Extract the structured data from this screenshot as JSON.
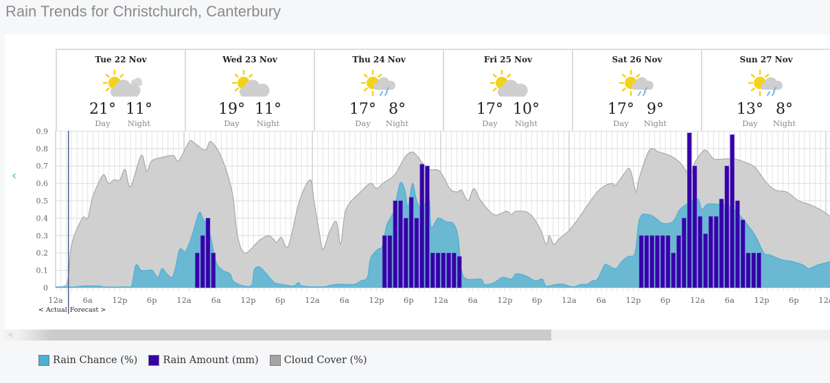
{
  "title": "Rain Trends for Christchurch, Canterbury",
  "days": [
    {
      "name": "Tue 22 Nov",
      "icon": "partly-cloudy-icon",
      "day": "21°",
      "night": "11°"
    },
    {
      "name": "Wed 23 Nov",
      "icon": "sun-cloud-icon",
      "day": "19°",
      "night": "11°"
    },
    {
      "name": "Thu 24 Nov",
      "icon": "sun-showers-icon",
      "day": "17°",
      "night": "8°"
    },
    {
      "name": "Fri 25 Nov",
      "icon": "sun-cloud-icon",
      "day": "17°",
      "night": "10°"
    },
    {
      "name": "Sat 26 Nov",
      "icon": "sun-showers-icon",
      "day": "17°",
      "night": "9°"
    },
    {
      "name": "Sun 27 Nov",
      "icon": "sun-showers-icon",
      "day": "13°",
      "night": "8°"
    }
  ],
  "labels": {
    "day": "Day",
    "night": "Night",
    "actual": "< Actual",
    "forecast": "Forecast >"
  },
  "nav": {
    "prev": "‹"
  },
  "legend": [
    {
      "label": "Rain Chance (%)",
      "color": "#4ab0d4"
    },
    {
      "label": "Rain Amount (mm)",
      "color": "#3700a8"
    },
    {
      "label": "Cloud Cover (%)",
      "color": "#a5a5a5"
    }
  ],
  "chart_data": {
    "type": "area+bar",
    "x_unit": "hours from 12a Tue 22 Nov",
    "xlim": [
      0,
      144.8
    ],
    "ylim": [
      0,
      0.9
    ],
    "y_ticks": [
      "0",
      "0.1",
      "0.2",
      "0.3",
      "0.4",
      "0.5",
      "0.6",
      "0.7",
      "0.8",
      "0.9"
    ],
    "x_ticks": [
      "12a",
      "6a",
      "12p",
      "6p",
      "12a",
      "6a",
      "12p",
      "6p",
      "12a",
      "6a",
      "12p",
      "6p",
      "12a",
      "6a",
      "12p",
      "6p",
      "12a",
      "6a",
      "12p",
      "6p",
      "12a",
      "6a",
      "12p",
      "6p",
      "12a"
    ],
    "grid": true,
    "actual_forecast_split_hour": 2.4,
    "series": [
      {
        "name": "Cloud Cover (%)",
        "color": "#d0d0d0",
        "points": [
          [
            0,
            0
          ],
          [
            2.1,
            0.02
          ],
          [
            3,
            0.25
          ],
          [
            5,
            0.4
          ],
          [
            6,
            0.4
          ],
          [
            6.9,
            0.52
          ],
          [
            8,
            0.6
          ],
          [
            9,
            0.65
          ],
          [
            9.9,
            0.6
          ],
          [
            10.9,
            0.62
          ],
          [
            12,
            0.62
          ],
          [
            13,
            0.68
          ],
          [
            14,
            0.58
          ],
          [
            16,
            0.76
          ],
          [
            17,
            0.67
          ],
          [
            18,
            0.73
          ],
          [
            20,
            0.75
          ],
          [
            22,
            0.76
          ],
          [
            23,
            0.73
          ],
          [
            25,
            0.84
          ],
          [
            26,
            0.83
          ],
          [
            28,
            0.79
          ],
          [
            29,
            0.84
          ],
          [
            31,
            0.75
          ],
          [
            33,
            0.55
          ],
          [
            34,
            0.3
          ],
          [
            35.4,
            0.2
          ],
          [
            38,
            0.27
          ],
          [
            39.7,
            0.3
          ],
          [
            40.7,
            0.28
          ],
          [
            41.3,
            0.26
          ],
          [
            42.2,
            0.29
          ],
          [
            43.5,
            0.24
          ],
          [
            45.6,
            0.5
          ],
          [
            47.6,
            0.62
          ],
          [
            48.3,
            0.5
          ],
          [
            49.4,
            0.3
          ],
          [
            50,
            0.22
          ],
          [
            51.2,
            0.32
          ],
          [
            52.5,
            0.38
          ],
          [
            53.3,
            0.25
          ],
          [
            54.3,
            0.45
          ],
          [
            57,
            0.55
          ],
          [
            58.9,
            0.6
          ],
          [
            60,
            0.57
          ],
          [
            61.2,
            0.6
          ],
          [
            63.4,
            0.65
          ],
          [
            65.3,
            0.75
          ],
          [
            66.6,
            0.78
          ],
          [
            67.5,
            0.76
          ],
          [
            68.5,
            0.72
          ],
          [
            69.8,
            0.68
          ],
          [
            71.8,
            0.67
          ],
          [
            73.7,
            0.57
          ],
          [
            75,
            0.55
          ],
          [
            75.9,
            0.56
          ],
          [
            77.1,
            0.5
          ],
          [
            78.2,
            0.57
          ],
          [
            79.5,
            0.5
          ],
          [
            82,
            0.42
          ],
          [
            84.3,
            0.44
          ],
          [
            85.2,
            0.42
          ],
          [
            86.1,
            0.44
          ],
          [
            88.4,
            0.43
          ],
          [
            90.4,
            0.35
          ],
          [
            91.7,
            0.25
          ],
          [
            92.3,
            0.3
          ],
          [
            93.1,
            0.25
          ],
          [
            94.1,
            0.28
          ],
          [
            94.9,
            0.3
          ],
          [
            96,
            0.33
          ],
          [
            97.8,
            0.4
          ],
          [
            100,
            0.5
          ],
          [
            101.9,
            0.57
          ],
          [
            103.9,
            0.6
          ],
          [
            104.7,
            0.59
          ],
          [
            106.4,
            0.66
          ],
          [
            107.4,
            0.68
          ],
          [
            108.5,
            0.55
          ],
          [
            109,
            0.62
          ],
          [
            111,
            0.79
          ],
          [
            112.8,
            0.78
          ],
          [
            114.8,
            0.76
          ],
          [
            116.7,
            0.72
          ],
          [
            118.6,
            0.65
          ],
          [
            119.5,
            0.72
          ],
          [
            121.2,
            0.79
          ],
          [
            122.2,
            0.77
          ],
          [
            123.1,
            0.74
          ],
          [
            125,
            0.74
          ],
          [
            127,
            0.74
          ],
          [
            129,
            0.72
          ],
          [
            130.8,
            0.69
          ],
          [
            133,
            0.6
          ],
          [
            134.7,
            0.56
          ],
          [
            136.7,
            0.55
          ],
          [
            138.9,
            0.5
          ],
          [
            140.8,
            0.48
          ],
          [
            142.9,
            0.45
          ],
          [
            144.8,
            0.41
          ]
        ]
      },
      {
        "name": "Rain Chance (%)",
        "color": "#4ab0d4",
        "points": [
          [
            0,
            0.005
          ],
          [
            3.7,
            0.005
          ],
          [
            5,
            0.01
          ],
          [
            8.2,
            0.01
          ],
          [
            8.9,
            0.005
          ],
          [
            13.3,
            0.005
          ],
          [
            14.2,
            0.01
          ],
          [
            15,
            0.13
          ],
          [
            16,
            0.1
          ],
          [
            17.2,
            0.1
          ],
          [
            18.1,
            0.1
          ],
          [
            19.1,
            0.06
          ],
          [
            19.9,
            0.11
          ],
          [
            20.8,
            0.08
          ],
          [
            21.7,
            0.06
          ],
          [
            22.3,
            0.1
          ],
          [
            23.2,
            0.22
          ],
          [
            24.3,
            0.21
          ],
          [
            25.5,
            0.3
          ],
          [
            26.8,
            0.43
          ],
          [
            27.5,
            0.4
          ],
          [
            28.7,
            0.33
          ],
          [
            30,
            0.15
          ],
          [
            31.3,
            0.1
          ],
          [
            32.6,
            0.08
          ],
          [
            33.5,
            0.03
          ],
          [
            36.5,
            0.01
          ],
          [
            37.1,
            0.1
          ],
          [
            38.1,
            0.12
          ],
          [
            39.7,
            0.07
          ],
          [
            40.9,
            0.03
          ],
          [
            42.2,
            0.02
          ],
          [
            44.5,
            0.01
          ],
          [
            45.4,
            0.03
          ],
          [
            46.2,
            0.01
          ],
          [
            49.9,
            0.005
          ],
          [
            50.9,
            0.01
          ],
          [
            52.5,
            0.02
          ],
          [
            55.8,
            0.02
          ],
          [
            57.1,
            0.04
          ],
          [
            58.3,
            0.06
          ],
          [
            58.9,
            0.17
          ],
          [
            60.2,
            0.22
          ],
          [
            61.1,
            0.24
          ],
          [
            61.9,
            0.36
          ],
          [
            63.2,
            0.44
          ],
          [
            64.4,
            0.6
          ],
          [
            65.3,
            0.56
          ],
          [
            65.9,
            0.46
          ],
          [
            66.7,
            0.6
          ],
          [
            67.5,
            0.5
          ],
          [
            68.5,
            0.45
          ],
          [
            69.8,
            0.52
          ],
          [
            70.2,
            0.35
          ],
          [
            71.5,
            0.4
          ],
          [
            73,
            0.38
          ],
          [
            74.3,
            0.37
          ],
          [
            75.2,
            0.3
          ],
          [
            75.9,
            0.1
          ],
          [
            76.9,
            0.05
          ],
          [
            79.5,
            0.05
          ],
          [
            80.2,
            0.02
          ],
          [
            82,
            0.03
          ],
          [
            83.6,
            0.06
          ],
          [
            85.2,
            0.05
          ],
          [
            86.1,
            0.08
          ],
          [
            87.8,
            0.07
          ],
          [
            89.7,
            0.04
          ],
          [
            91,
            0.05
          ],
          [
            91.7,
            0.01
          ],
          [
            93.6,
            0.02
          ],
          [
            94.9,
            0.02
          ],
          [
            96,
            0.01
          ],
          [
            96.8,
            0.005
          ],
          [
            97.4,
            0.01
          ],
          [
            98.3,
            0.02
          ],
          [
            99.3,
            0.02
          ],
          [
            100.4,
            0.04
          ],
          [
            101.3,
            0.05
          ],
          [
            102.6,
            0.13
          ],
          [
            103.2,
            0.13
          ],
          [
            104.7,
            0.11
          ],
          [
            105.8,
            0.15
          ],
          [
            107,
            0.18
          ],
          [
            108.3,
            0.2
          ],
          [
            109.2,
            0.4
          ],
          [
            110.9,
            0.42
          ],
          [
            112.2,
            0.4
          ],
          [
            113.5,
            0.37
          ],
          [
            115.4,
            0.38
          ],
          [
            116.7,
            0.45
          ],
          [
            118,
            0.48
          ],
          [
            120,
            0.51
          ],
          [
            120.8,
            0.45
          ],
          [
            121.8,
            0.48
          ],
          [
            123.7,
            0.48
          ],
          [
            125.7,
            0.47
          ],
          [
            126.9,
            0.45
          ],
          [
            128.9,
            0.38
          ],
          [
            130.8,
            0.3
          ],
          [
            132.4,
            0.2
          ],
          [
            133.4,
            0.19
          ],
          [
            135.9,
            0.16
          ],
          [
            137.9,
            0.15
          ],
          [
            139.8,
            0.13
          ],
          [
            140.8,
            0.11
          ],
          [
            142.4,
            0.13
          ],
          [
            144.8,
            0.15
          ]
        ]
      },
      {
        "name": "Rain Amount (mm)",
        "color": "#3700a8",
        "bars": [
          [
            26,
            0.2
          ],
          [
            27,
            0.3
          ],
          [
            28,
            0.4
          ],
          [
            29,
            0.2
          ],
          [
            61,
            0.3
          ],
          [
            62,
            0.3
          ],
          [
            63,
            0.5
          ],
          [
            64,
            0.5
          ],
          [
            65,
            0.4
          ],
          [
            66,
            0.52
          ],
          [
            67,
            0.4
          ],
          [
            68,
            0.71
          ],
          [
            69,
            0.7
          ],
          [
            70,
            0.2
          ],
          [
            71,
            0.2
          ],
          [
            72,
            0.2
          ],
          [
            73,
            0.2
          ],
          [
            74,
            0.2
          ],
          [
            75,
            0.18
          ],
          [
            109,
            0.3
          ],
          [
            110,
            0.3
          ],
          [
            111,
            0.3
          ],
          [
            112,
            0.3
          ],
          [
            113,
            0.3
          ],
          [
            114,
            0.3
          ],
          [
            115,
            0.2
          ],
          [
            116,
            0.3
          ],
          [
            117,
            0.4
          ],
          [
            118,
            0.89
          ],
          [
            119,
            0.7
          ],
          [
            120,
            0.41
          ],
          [
            121,
            0.31
          ],
          [
            122,
            0.41
          ],
          [
            123,
            0.41
          ],
          [
            124,
            0.51
          ],
          [
            125,
            0.7
          ],
          [
            126,
            0.88
          ],
          [
            127,
            0.5
          ],
          [
            128,
            0.39
          ],
          [
            129,
            0.2
          ],
          [
            130,
            0.2
          ],
          [
            131,
            0.2
          ]
        ]
      }
    ]
  }
}
